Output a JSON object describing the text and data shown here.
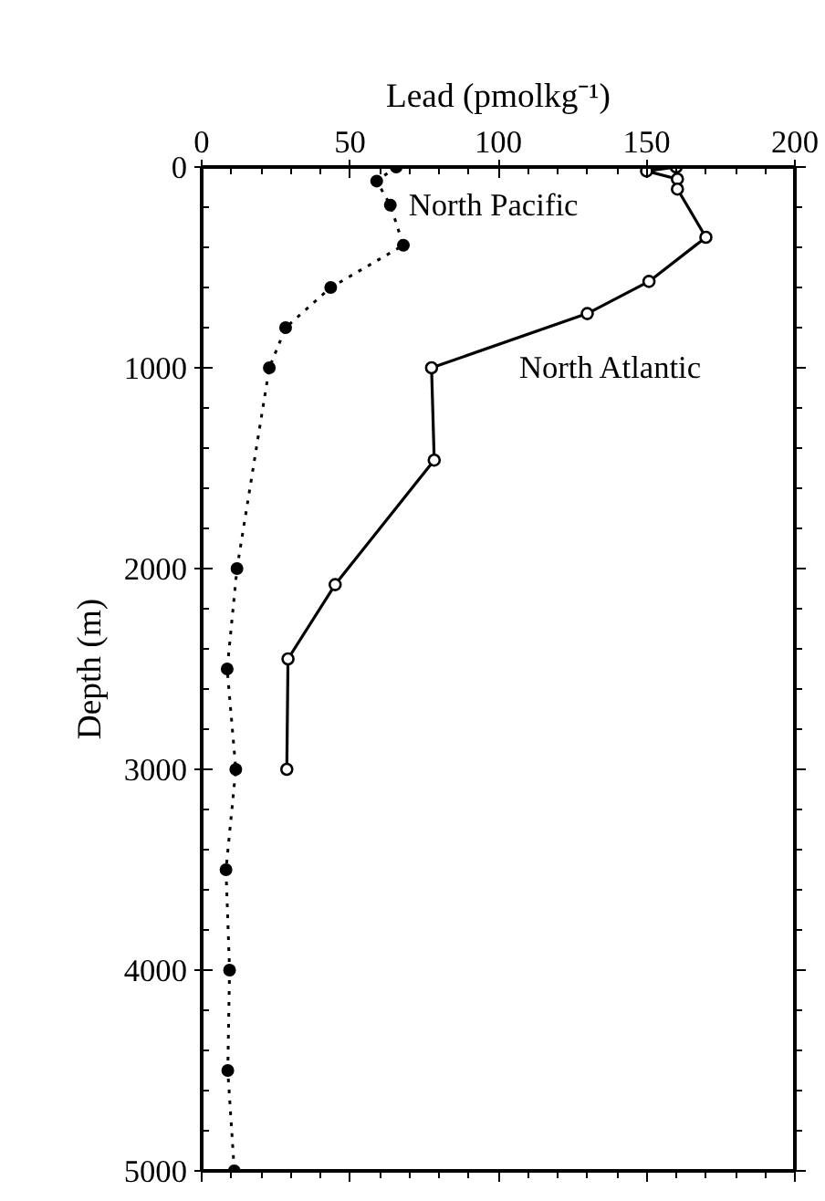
{
  "chart_data": {
    "type": "line",
    "xlabel": "Lead (pmolkg⁻¹)",
    "ylabel": "Depth (m)",
    "xlim": [
      0,
      200
    ],
    "xticks": [
      0,
      50,
      100,
      150,
      200
    ],
    "ylim": [
      5000,
      0
    ],
    "yticks": [
      0,
      1000,
      2000,
      3000,
      4000,
      5000
    ],
    "grid": false,
    "series": [
      {
        "name": "North Pacific",
        "color": "#000000",
        "marker": "circle",
        "line_style": "dotted",
        "x": [
          65.6,
          59,
          63.6,
          68,
          43.5,
          28.3,
          22.8,
          11.9,
          8.6,
          11.5,
          8.2,
          9.4,
          8.8,
          11
        ],
        "values": [
          0,
          70,
          190,
          390,
          600,
          800,
          1000,
          2000,
          2500,
          3000,
          3500,
          4000,
          4500,
          5000
        ]
      },
      {
        "name": "North Atlantic",
        "color": "#000000",
        "marker": "open_circle",
        "line_style": "solid",
        "x": [
          160,
          150,
          160.4,
          160.4,
          170,
          150.8,
          130,
          77.5,
          78.4,
          45,
          29.1,
          28.7
        ],
        "values": [
          0,
          20,
          60,
          110,
          350,
          570,
          730,
          1000,
          1460,
          2080,
          2450,
          3000
        ]
      }
    ]
  }
}
